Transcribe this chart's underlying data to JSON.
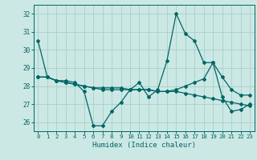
{
  "title": "",
  "xlabel": "Humidex (Indice chaleur)",
  "background_color": "#cce8e4",
  "grid_color": "#aad4cc",
  "line_color": "#006666",
  "xlim": [
    -0.5,
    23.5
  ],
  "ylim": [
    25.5,
    32.5
  ],
  "yticks": [
    26,
    27,
    28,
    29,
    30,
    31,
    32
  ],
  "xticks": [
    0,
    1,
    2,
    3,
    4,
    5,
    6,
    7,
    8,
    9,
    10,
    11,
    12,
    13,
    14,
    15,
    16,
    17,
    18,
    19,
    20,
    21,
    22,
    23
  ],
  "series1": [
    30.5,
    28.5,
    28.3,
    28.3,
    28.2,
    27.7,
    25.8,
    25.8,
    26.6,
    27.1,
    27.8,
    28.2,
    27.4,
    27.8,
    29.4,
    32.0,
    30.9,
    30.5,
    29.3,
    29.3,
    27.4,
    26.6,
    26.7,
    27.0
  ],
  "series2": [
    28.5,
    28.5,
    28.3,
    28.2,
    28.1,
    28.0,
    27.9,
    27.8,
    27.8,
    27.8,
    27.8,
    27.8,
    27.8,
    27.7,
    27.7,
    27.8,
    28.0,
    28.2,
    28.4,
    29.3,
    28.5,
    27.8,
    27.5,
    27.5
  ],
  "series3": [
    28.5,
    28.5,
    28.3,
    28.2,
    28.1,
    28.0,
    27.9,
    27.9,
    27.9,
    27.9,
    27.8,
    27.8,
    27.8,
    27.7,
    27.7,
    27.7,
    27.6,
    27.5,
    27.4,
    27.3,
    27.2,
    27.1,
    27.0,
    26.9
  ]
}
